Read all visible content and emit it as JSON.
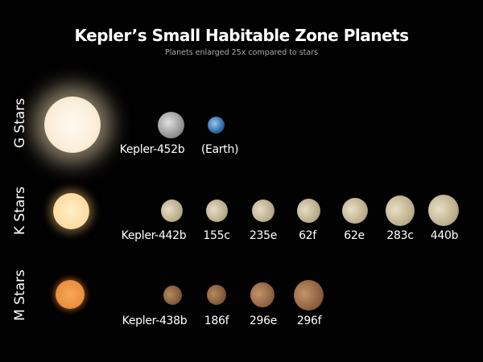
{
  "title": "Kepler’s Small Habitable Zone Planets",
  "subtitle": "Planets enlarged 25x compared to stars",
  "rows": [
    {
      "label": "G Stars",
      "star_color": "#fff3dc",
      "planets": [
        "Kepler-452b",
        "(Earth)"
      ]
    },
    {
      "label": "K Stars",
      "star_color": "#ffd9a0",
      "planets": [
        "Kepler-442b",
        "155c",
        "235e",
        "62f",
        "62e",
        "283c",
        "440b"
      ]
    },
    {
      "label": "M Stars",
      "star_color": "#f0984a",
      "planets": [
        "Kepler-438b",
        "186f",
        "296e",
        "296f"
      ]
    }
  ]
}
